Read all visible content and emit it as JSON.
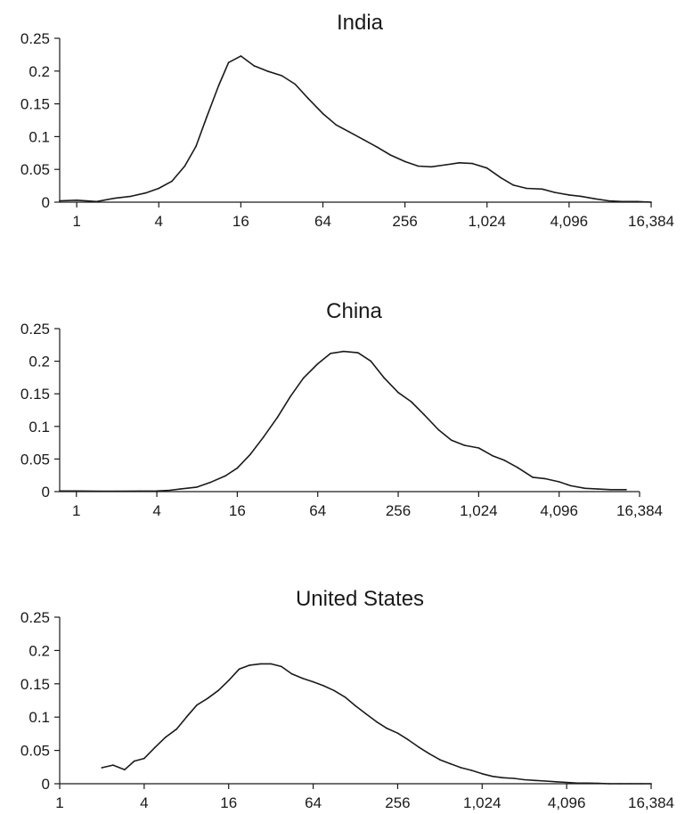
{
  "chart_data": [
    {
      "type": "line",
      "title": "India",
      "xlabel": "",
      "ylabel": "",
      "x_scale": "log2",
      "xlim": [
        0.75,
        16384
      ],
      "ylim": [
        0,
        0.25
      ],
      "grid": false,
      "x_ticks": [
        1,
        4,
        16,
        64,
        256,
        1024,
        4096,
        16384
      ],
      "x_tick_labels": [
        "1",
        "4",
        "16",
        "64",
        "256",
        "1,024",
        "4,096",
        "16,384"
      ],
      "y_ticks": [
        0,
        0.05,
        0.1,
        0.15,
        0.2,
        0.25
      ],
      "y_tick_labels": [
        "0",
        "0.05",
        "0.1",
        "0.15",
        "0.2",
        "0.25"
      ],
      "series": [
        {
          "x": [
            0.75,
            1,
            1.4,
            1.9,
            2.5,
            3.2,
            4,
            5,
            6.2,
            7.5,
            9,
            11,
            13,
            16,
            20,
            25,
            32,
            40,
            50,
            64,
            80,
            100,
            128,
            160,
            200,
            256,
            320,
            400,
            512,
            640,
            800,
            1024,
            1300,
            1600,
            2000,
            2600,
            3200,
            4096,
            5000,
            6400,
            8000,
            10000,
            13000,
            16384
          ],
          "y": [
            0.002,
            0.003,
            0.001,
            0.006,
            0.009,
            0.014,
            0.021,
            0.032,
            0.055,
            0.085,
            0.13,
            0.178,
            0.213,
            0.223,
            0.208,
            0.2,
            0.193,
            0.18,
            0.158,
            0.135,
            0.118,
            0.107,
            0.095,
            0.084,
            0.072,
            0.062,
            0.055,
            0.054,
            0.057,
            0.06,
            0.059,
            0.052,
            0.037,
            0.026,
            0.021,
            0.02,
            0.015,
            0.011,
            0.009,
            0.005,
            0.002,
            0.001,
            0.001,
            0
          ]
        }
      ]
    },
    {
      "type": "line",
      "title": "China",
      "xlabel": "",
      "ylabel": "",
      "x_scale": "log2",
      "xlim": [
        0.75,
        16384
      ],
      "ylim": [
        0,
        0.25
      ],
      "grid": false,
      "x_ticks": [
        1,
        4,
        16,
        64,
        256,
        1024,
        4096,
        16384
      ],
      "x_tick_labels": [
        "1",
        "4",
        "16",
        "64",
        "256",
        "1,024",
        "4,096",
        "16,384"
      ],
      "y_ticks": [
        0,
        0.05,
        0.1,
        0.15,
        0.2,
        0.25
      ],
      "y_tick_labels": [
        "0",
        "0.05",
        "0.1",
        "0.15",
        "0.2",
        "0.25"
      ],
      "series": [
        {
          "x": [
            0.75,
            1,
            1.5,
            2,
            3,
            4,
            5,
            6,
            8,
            10,
            13,
            16,
            20,
            25,
            32,
            40,
            50,
            64,
            80,
            100,
            128,
            160,
            200,
            256,
            320,
            400,
            512,
            640,
            800,
            1024,
            1300,
            1600,
            2000,
            2600,
            3200,
            4096,
            5000,
            6400,
            8000,
            10000,
            13000
          ],
          "y": [
            0.001,
            0.001,
            0.0005,
            0.0005,
            0.0008,
            0.001,
            0.002,
            0.004,
            0.007,
            0.014,
            0.024,
            0.036,
            0.057,
            0.083,
            0.114,
            0.146,
            0.174,
            0.196,
            0.212,
            0.215,
            0.213,
            0.2,
            0.175,
            0.152,
            0.138,
            0.118,
            0.095,
            0.079,
            0.071,
            0.067,
            0.055,
            0.048,
            0.037,
            0.022,
            0.02,
            0.015,
            0.009,
            0.005,
            0.004,
            0.003,
            0.003
          ]
        }
      ]
    },
    {
      "type": "line",
      "title": "United States",
      "xlabel": "",
      "ylabel": "",
      "x_scale": "log2",
      "xlim": [
        1,
        16384
      ],
      "ylim": [
        0,
        0.25
      ],
      "grid": false,
      "x_ticks": [
        1,
        4,
        16,
        64,
        256,
        1024,
        4096,
        16384
      ],
      "x_tick_labels": [
        "1",
        "4",
        "16",
        "64",
        "256",
        "1,024",
        "4,096",
        "16,384"
      ],
      "y_ticks": [
        0,
        0.05,
        0.1,
        0.15,
        0.2,
        0.25
      ],
      "y_tick_labels": [
        "0",
        "0.05",
        "0.1",
        "0.15",
        "0.2",
        "0.25"
      ],
      "series": [
        {
          "x": [
            2,
            2.4,
            2.9,
            3.4,
            4,
            4.8,
            5.7,
            6.8,
            8,
            9.5,
            11.3,
            13.5,
            16,
            19,
            22.6,
            27,
            32,
            38,
            45,
            54,
            64,
            76,
            90,
            108,
            128,
            152,
            181,
            215,
            256,
            304,
            362,
            430,
            512,
            609,
            724,
            861,
            1024,
            1218,
            1448,
            1722,
            2048,
            2435,
            2896,
            3444,
            4096,
            4871,
            5793,
            6889,
            8192,
            9742,
            11585,
            13777,
            16384
          ],
          "y": [
            0.024,
            0.028,
            0.021,
            0.034,
            0.038,
            0.055,
            0.07,
            0.082,
            0.1,
            0.118,
            0.128,
            0.14,
            0.155,
            0.172,
            0.178,
            0.18,
            0.18,
            0.176,
            0.165,
            0.158,
            0.153,
            0.147,
            0.14,
            0.13,
            0.117,
            0.105,
            0.093,
            0.083,
            0.076,
            0.066,
            0.055,
            0.045,
            0.036,
            0.03,
            0.024,
            0.02,
            0.015,
            0.011,
            0.009,
            0.008,
            0.006,
            0.005,
            0.004,
            0.003,
            0.002,
            0.001,
            0.001,
            0.0005,
            0,
            0,
            0,
            0,
            0
          ]
        }
      ]
    }
  ]
}
